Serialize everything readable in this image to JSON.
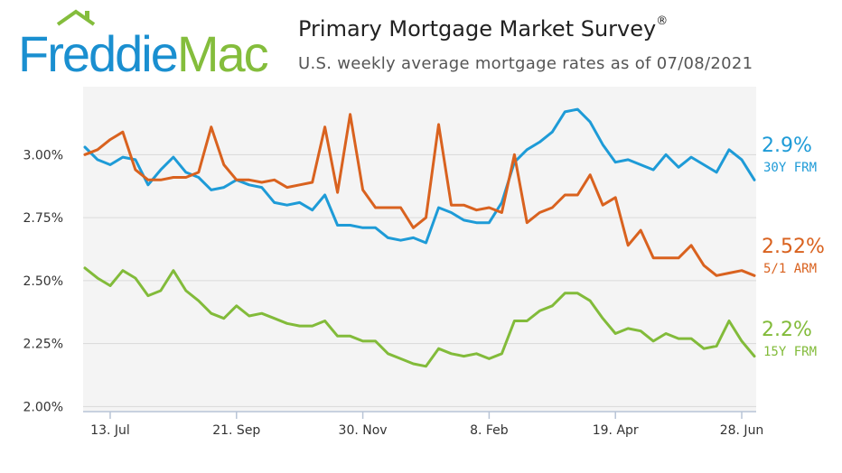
{
  "brand": {
    "name_part1": "Freddie",
    "name_part2": "Mac",
    "blue": "#1a8fd0",
    "green": "#84bd3c"
  },
  "header": {
    "title": "Primary Mortgage Market Survey",
    "registered": "®",
    "subtitle": "U.S. weekly average mortgage rates as of 07/08/2021"
  },
  "chart_data": {
    "type": "line",
    "ylim": [
      1.98,
      3.27
    ],
    "yticks": [
      2.0,
      2.25,
      2.5,
      2.75,
      3.0
    ],
    "ytick_labels": [
      "2.00%",
      "2.25%",
      "2.50%",
      "2.75%",
      "3.00%"
    ],
    "xtick_labels": [
      "13. Jul",
      "21. Sep",
      "30. Nov",
      "8. Feb",
      "19. Apr",
      "28. Jun"
    ],
    "xtick_index": [
      2,
      12,
      22,
      32,
      42,
      52
    ],
    "grid": true,
    "series": [
      {
        "name": "30Y FRM",
        "end_value": "2.9%",
        "color": "#1e9bd7",
        "values": [
          3.03,
          2.98,
          2.96,
          2.99,
          2.98,
          2.88,
          2.94,
          2.99,
          2.93,
          2.91,
          2.86,
          2.87,
          2.9,
          2.88,
          2.87,
          2.81,
          2.8,
          2.81,
          2.78,
          2.84,
          2.72,
          2.72,
          2.71,
          2.71,
          2.67,
          2.66,
          2.67,
          2.65,
          2.79,
          2.77,
          2.74,
          2.73,
          2.73,
          2.81,
          2.97,
          3.02,
          3.05,
          3.09,
          3.17,
          3.18,
          3.13,
          3.04,
          2.97,
          2.98,
          2.96,
          2.94,
          3.0,
          2.95,
          2.99,
          2.96,
          2.93,
          3.02,
          2.98,
          2.9
        ]
      },
      {
        "name": "5/1 ARM",
        "end_value": "2.52%",
        "color": "#d9621f",
        "values": [
          3.0,
          3.02,
          3.06,
          3.09,
          2.94,
          2.9,
          2.9,
          2.91,
          2.91,
          2.93,
          3.11,
          2.96,
          2.9,
          2.9,
          2.89,
          2.9,
          2.87,
          2.88,
          2.89,
          3.11,
          2.85,
          3.16,
          2.86,
          2.79,
          2.79,
          2.79,
          2.71,
          2.75,
          3.12,
          2.8,
          2.8,
          2.78,
          2.79,
          2.77,
          3.0,
          2.73,
          2.77,
          2.79,
          2.84,
          2.84,
          2.92,
          2.8,
          2.83,
          2.64,
          2.7,
          2.59,
          2.59,
          2.59,
          2.64,
          2.56,
          2.52,
          2.53,
          2.54,
          2.52
        ]
      },
      {
        "name": "15Y FRM",
        "end_value": "2.2%",
        "color": "#82bb3a",
        "values": [
          2.55,
          2.51,
          2.48,
          2.54,
          2.51,
          2.44,
          2.46,
          2.54,
          2.46,
          2.42,
          2.37,
          2.35,
          2.4,
          2.36,
          2.37,
          2.35,
          2.33,
          2.32,
          2.32,
          2.34,
          2.28,
          2.28,
          2.26,
          2.26,
          2.21,
          2.19,
          2.17,
          2.16,
          2.23,
          2.21,
          2.2,
          2.21,
          2.19,
          2.21,
          2.34,
          2.34,
          2.38,
          2.4,
          2.45,
          2.45,
          2.42,
          2.35,
          2.29,
          2.31,
          2.3,
          2.26,
          2.29,
          2.27,
          2.27,
          2.23,
          2.24,
          2.34,
          2.26,
          2.2
        ]
      }
    ]
  }
}
